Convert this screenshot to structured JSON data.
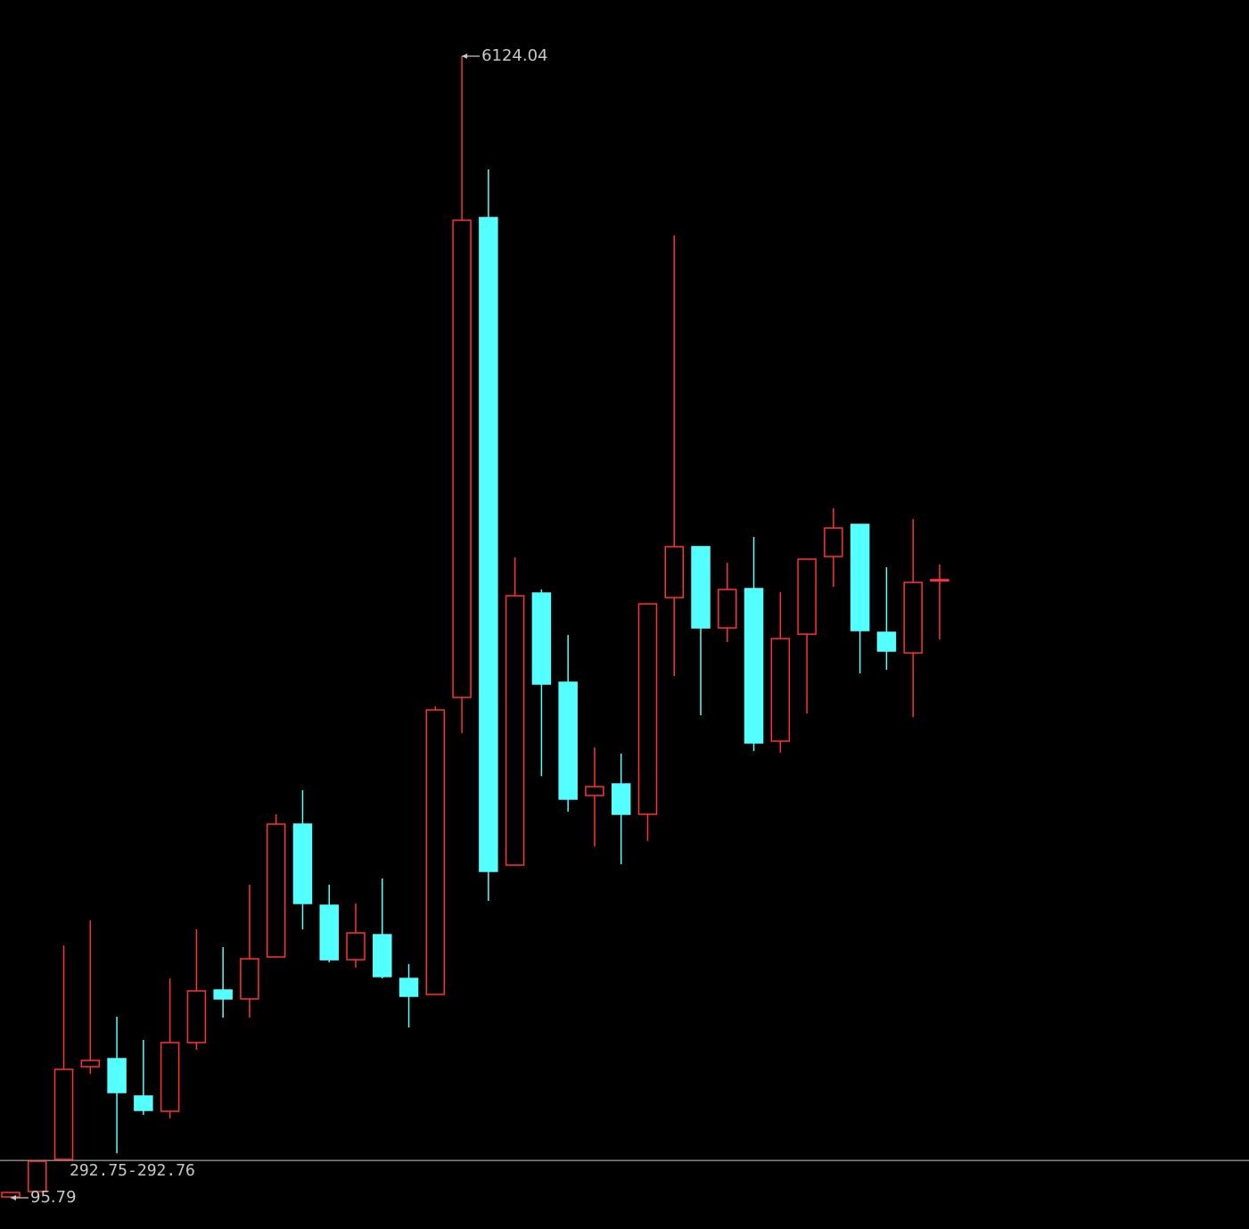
{
  "chart_data": {
    "type": "candlestick",
    "categories": [
      null,
      null,
      null,
      null,
      null,
      null,
      null,
      null,
      null,
      null,
      null,
      null,
      null,
      null,
      null,
      null,
      null,
      null,
      null,
      null,
      null,
      null,
      null,
      null,
      null,
      null,
      null,
      null,
      null,
      null,
      null,
      null,
      null,
      null,
      null,
      null
    ],
    "open": [
      100.5,
      128.8,
      298.3,
      788,
      830.5,
      633,
      552.6,
      915.3,
      1193,
      1146,
      1367.4,
      2069,
      1640.5,
      1353,
      1485,
      1254,
      1169.6,
      2738,
      5271.6,
      1852.5,
      3289,
      2818,
      2220,
      2281,
      2121,
      3265.3,
      3534,
      3105,
      3312.5,
      2507,
      3072,
      3482,
      3651.5,
      3081.7,
      2973,
      3355
    ],
    "high": [
      124,
      288.9,
      1428,
      1560,
      1052,
      929.4,
      1254.4,
      1513.4,
      1419,
      1749,
      2121,
      2248,
      1749,
      1650,
      1782,
      1330,
      2691,
      6124.04,
      5526,
      3477,
      3308,
      3067.6,
      2474,
      2441,
      3232,
      5177.5,
      3534,
      3449,
      3585.6,
      3293.6,
      3468,
      3736.3,
      3651.5,
      3425.5,
      3680,
      3440
    ],
    "low": [
      95.79,
      128.8,
      289,
      750,
      331,
      533.8,
      515,
      877.5,
      1047,
      1047,
      1367.4,
      1513,
      1339,
      1311,
      1254,
      995,
      1169.6,
      2549,
      1664,
      1852.5,
      2322,
      2135,
      1951,
      1857,
      1980,
      2851,
      2643.7,
      3030,
      2455,
      2446,
      2653,
      3322,
      2865,
      2884,
      2634,
      3044
    ],
    "close": [
      124,
      288.9,
      774,
      821,
      651.5,
      557.3,
      915.3,
      1188.4,
      1146,
      1358,
      2069,
      1650,
      1353,
      1494.5,
      1264,
      1160,
      2672,
      5257.5,
      1819.5,
      3274.8,
      2808.5,
      2201,
      2267,
      2121,
      3232,
      3534,
      3105,
      3308,
      2497.7,
      3048.7,
      3468,
      3632.6,
      3091,
      2982.7,
      3345.4,
      3360
    ],
    "up_color": "#ff3232",
    "down_color": "#54ffff",
    "ylim": [
      -69,
      6420.7
    ],
    "annotations": [
      {
        "value": 6124.04,
        "label": "6124.04",
        "index": 17
      },
      {
        "value": 95.79,
        "label": "95.79",
        "index": 0
      }
    ],
    "reference_line": {
      "value": 292.75,
      "label": "292.75-292.76",
      "color": "#c8c8c8"
    }
  }
}
